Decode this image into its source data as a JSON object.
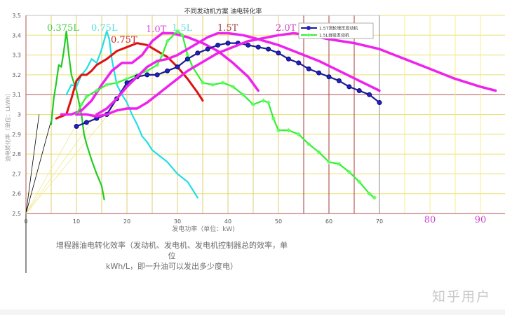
{
  "chart_data": {
    "type": "line",
    "title": "不同发动机方案 油电转化率",
    "xlabel": "发电功率（单位：kW)",
    "ylabel": "油电转化率（单位：LkWh）",
    "xlim": [
      0,
      95
    ],
    "ylim": [
      2.5,
      3.5
    ],
    "x_ticks": [
      "0",
      "10",
      "20",
      "30",
      "40",
      "50",
      "60",
      "70"
    ],
    "x_ticks_extra": [
      "80",
      "90"
    ],
    "y_ticks": [
      "2.5",
      "2.6",
      "2.7",
      "2.8",
      "2.9",
      "3",
      "3.1",
      "3.2",
      "3.3",
      "3.4",
      "3.5"
    ],
    "grid": true,
    "legend": {
      "position": "top-right",
      "entries": [
        {
          "label": "1.5T涡轮增压发动机",
          "color": "#1a1aa0",
          "marker": "circle"
        },
        {
          "label": "1.5L自吸发动机",
          "color": "#33ee33",
          "marker": "star"
        }
      ]
    },
    "series": [
      {
        "name": "0.375L",
        "color": "#22cc22",
        "label_pos": [
          12,
          3.45
        ],
        "points": [
          [
            5,
            2.95
          ],
          [
            5.5,
            3.08
          ],
          [
            6,
            3.16
          ],
          [
            6.5,
            3.25
          ],
          [
            7,
            3.24
          ],
          [
            7.5,
            3.32
          ],
          [
            8,
            3.42
          ],
          [
            8.5,
            3.3
          ],
          [
            9,
            3.2
          ],
          [
            10,
            3.12
          ],
          [
            11,
            3.0
          ],
          [
            11.5,
            2.9
          ],
          [
            12,
            2.85
          ],
          [
            13,
            2.77
          ],
          [
            14,
            2.7
          ],
          [
            15,
            2.64
          ],
          [
            15.5,
            2.57
          ]
        ]
      },
      {
        "name": "0.75L",
        "color": "#22dde8",
        "label_pos": [
          16,
          3.45
        ],
        "points": [
          [
            8,
            3.1
          ],
          [
            9,
            3.15
          ],
          [
            10,
            3.14
          ],
          [
            11,
            3.2
          ],
          [
            12,
            3.23
          ],
          [
            13,
            3.28
          ],
          [
            14,
            3.26
          ],
          [
            15,
            3.33
          ],
          [
            16,
            3.42
          ],
          [
            16.5,
            3.38
          ],
          [
            17,
            3.28
          ],
          [
            18,
            3.15
          ],
          [
            19,
            3.1
          ],
          [
            20,
            3.06
          ],
          [
            21,
            3.0
          ],
          [
            22,
            2.95
          ],
          [
            23,
            2.89
          ],
          [
            24,
            2.86
          ],
          [
            25,
            2.82
          ],
          [
            26,
            2.8
          ],
          [
            28,
            2.76
          ],
          [
            30,
            2.7
          ],
          [
            32,
            2.66
          ],
          [
            33,
            2.62
          ],
          [
            34,
            2.58
          ]
        ]
      },
      {
        "name": "0.75T",
        "color": "#dd1111",
        "label_pos": [
          20,
          3.39
        ],
        "points": [
          [
            6,
            2.98
          ],
          [
            7,
            2.99
          ],
          [
            8,
            3.0
          ],
          [
            9,
            3.08
          ],
          [
            10,
            3.17
          ],
          [
            11,
            3.2
          ],
          [
            12,
            3.2
          ],
          [
            13,
            3.22
          ],
          [
            14,
            3.25
          ],
          [
            16,
            3.28
          ],
          [
            18,
            3.32
          ],
          [
            20,
            3.34
          ],
          [
            22,
            3.36
          ],
          [
            24,
            3.35
          ],
          [
            26,
            3.32
          ],
          [
            28,
            3.29
          ],
          [
            30,
            3.24
          ],
          [
            32,
            3.18
          ],
          [
            34,
            3.11
          ],
          [
            35,
            3.07
          ]
        ]
      },
      {
        "name": "1.0T",
        "color": "#ee22ee",
        "label_pos": [
          26,
          3.42
        ],
        "points": [
          [
            7,
            3.0
          ],
          [
            9,
            3.0
          ],
          [
            11,
            3.02
          ],
          [
            13,
            3.07
          ],
          [
            15,
            3.15
          ],
          [
            17,
            3.22
          ],
          [
            19,
            3.26
          ],
          [
            21,
            3.26
          ],
          [
            23,
            3.3
          ],
          [
            25,
            3.37
          ],
          [
            27,
            3.41
          ],
          [
            29,
            3.41
          ],
          [
            32,
            3.39
          ],
          [
            35,
            3.36
          ],
          [
            38,
            3.32
          ],
          [
            41,
            3.26
          ],
          [
            44,
            3.19
          ],
          [
            46,
            3.12
          ]
        ]
      },
      {
        "name": "1.5L",
        "color": "#33ee33",
        "marker": "star",
        "label_pos": [
          31,
          3.42
        ],
        "points": [
          [
            10,
            3.0
          ],
          [
            11,
            3.05
          ],
          [
            12,
            3.09
          ],
          [
            14,
            3.12
          ],
          [
            16,
            3.15
          ],
          [
            18,
            3.16
          ],
          [
            20,
            3.18
          ],
          [
            22,
            3.2
          ],
          [
            24,
            3.22
          ],
          [
            26,
            3.25
          ],
          [
            27,
            3.3
          ],
          [
            28,
            3.37
          ],
          [
            30,
            3.42
          ],
          [
            31,
            3.4
          ],
          [
            32,
            3.3
          ],
          [
            33,
            3.24
          ],
          [
            35,
            3.16
          ],
          [
            37,
            3.15
          ],
          [
            39,
            3.16
          ],
          [
            41,
            3.14
          ],
          [
            43,
            3.1
          ],
          [
            45,
            3.05
          ],
          [
            47,
            3.07
          ],
          [
            48,
            3.06
          ],
          [
            49,
            2.98
          ],
          [
            50,
            2.92
          ],
          [
            52,
            2.92
          ],
          [
            54,
            2.9
          ],
          [
            56,
            2.85
          ],
          [
            58,
            2.81
          ],
          [
            60,
            2.76
          ],
          [
            62,
            2.75
          ],
          [
            64,
            2.71
          ],
          [
            66,
            2.66
          ],
          [
            68,
            2.6
          ],
          [
            69,
            2.58
          ]
        ]
      },
      {
        "name": "1.5T",
        "color": "#1a1aa0",
        "marker": "circle",
        "label_pos": [
          41,
          3.42
        ],
        "points": [
          [
            10,
            2.94
          ],
          [
            12,
            2.96
          ],
          [
            14,
            2.98
          ],
          [
            16,
            3.0
          ],
          [
            18,
            3.08
          ],
          [
            20,
            3.16
          ],
          [
            22,
            3.19
          ],
          [
            24,
            3.2
          ],
          [
            26,
            3.2
          ],
          [
            28,
            3.22
          ],
          [
            30,
            3.24
          ],
          [
            32,
            3.28
          ],
          [
            34,
            3.31
          ],
          [
            36,
            3.33
          ],
          [
            38,
            3.35
          ],
          [
            40,
            3.36
          ],
          [
            42,
            3.36
          ],
          [
            44,
            3.35
          ],
          [
            46,
            3.34
          ],
          [
            48,
            3.33
          ],
          [
            50,
            3.31
          ],
          [
            52,
            3.28
          ],
          [
            54,
            3.26
          ],
          [
            56,
            3.23
          ],
          [
            58,
            3.21
          ],
          [
            60,
            3.19
          ],
          [
            62,
            3.17
          ],
          [
            64,
            3.14
          ],
          [
            66,
            3.12
          ],
          [
            68,
            3.1
          ],
          [
            70,
            3.06
          ]
        ]
      },
      {
        "name": "1.5T (magenta)",
        "color": "#ee22ee",
        "label_pos": [
          41,
          3.42
        ],
        "points": [
          [
            14,
            3.0
          ],
          [
            16,
            3.03
          ],
          [
            18,
            3.08
          ],
          [
            20,
            3.14
          ],
          [
            22,
            3.19
          ],
          [
            24,
            3.24
          ],
          [
            26,
            3.27
          ],
          [
            28,
            3.28
          ],
          [
            30,
            3.3
          ],
          [
            32,
            3.33
          ],
          [
            34,
            3.36
          ],
          [
            36,
            3.39
          ],
          [
            38,
            3.41
          ],
          [
            40,
            3.41
          ],
          [
            43,
            3.4
          ],
          [
            46,
            3.38
          ],
          [
            50,
            3.35
          ],
          [
            54,
            3.31
          ],
          [
            58,
            3.27
          ],
          [
            62,
            3.22
          ],
          [
            66,
            3.17
          ],
          [
            70,
            3.12
          ]
        ]
      },
      {
        "name": "2.0T",
        "color": "#ee22ee",
        "label_pos": [
          55,
          3.42
        ],
        "points": [
          [
            10,
            3.0
          ],
          [
            12,
            3.0
          ],
          [
            14,
            2.99
          ],
          [
            16,
            3.0
          ],
          [
            18,
            3.02
          ],
          [
            20,
            3.03
          ],
          [
            22,
            3.03
          ],
          [
            24,
            3.06
          ],
          [
            26,
            3.1
          ],
          [
            28,
            3.14
          ],
          [
            30,
            3.18
          ],
          [
            32,
            3.22
          ],
          [
            34,
            3.25
          ],
          [
            36,
            3.28
          ],
          [
            38,
            3.31
          ],
          [
            40,
            3.33
          ],
          [
            42,
            3.35
          ],
          [
            44,
            3.37
          ],
          [
            46,
            3.38
          ],
          [
            48,
            3.39
          ],
          [
            50,
            3.4
          ],
          [
            53,
            3.41
          ],
          [
            56,
            3.4
          ],
          [
            60,
            3.38
          ],
          [
            65,
            3.36
          ],
          [
            70,
            3.33
          ],
          [
            75,
            3.28
          ],
          [
            80,
            3.23
          ],
          [
            85,
            3.18
          ],
          [
            90,
            3.14
          ],
          [
            93,
            3.12
          ]
        ]
      }
    ],
    "annotations": {
      "caption": [
        "增程器油电转化效率（发动机、发电机、发电机控制器总的效率，单位",
        "kWh/L，即一升油可以发出多少度电）"
      ],
      "watermark": "知乎用户"
    }
  },
  "caption": {
    "line1": "增程器油电转化效率（发动机、发电机、发电机控制器总的效率，单位",
    "line2": "kWh/L，即一升油可以发出多少度电）"
  },
  "watermark": "知乎用户"
}
